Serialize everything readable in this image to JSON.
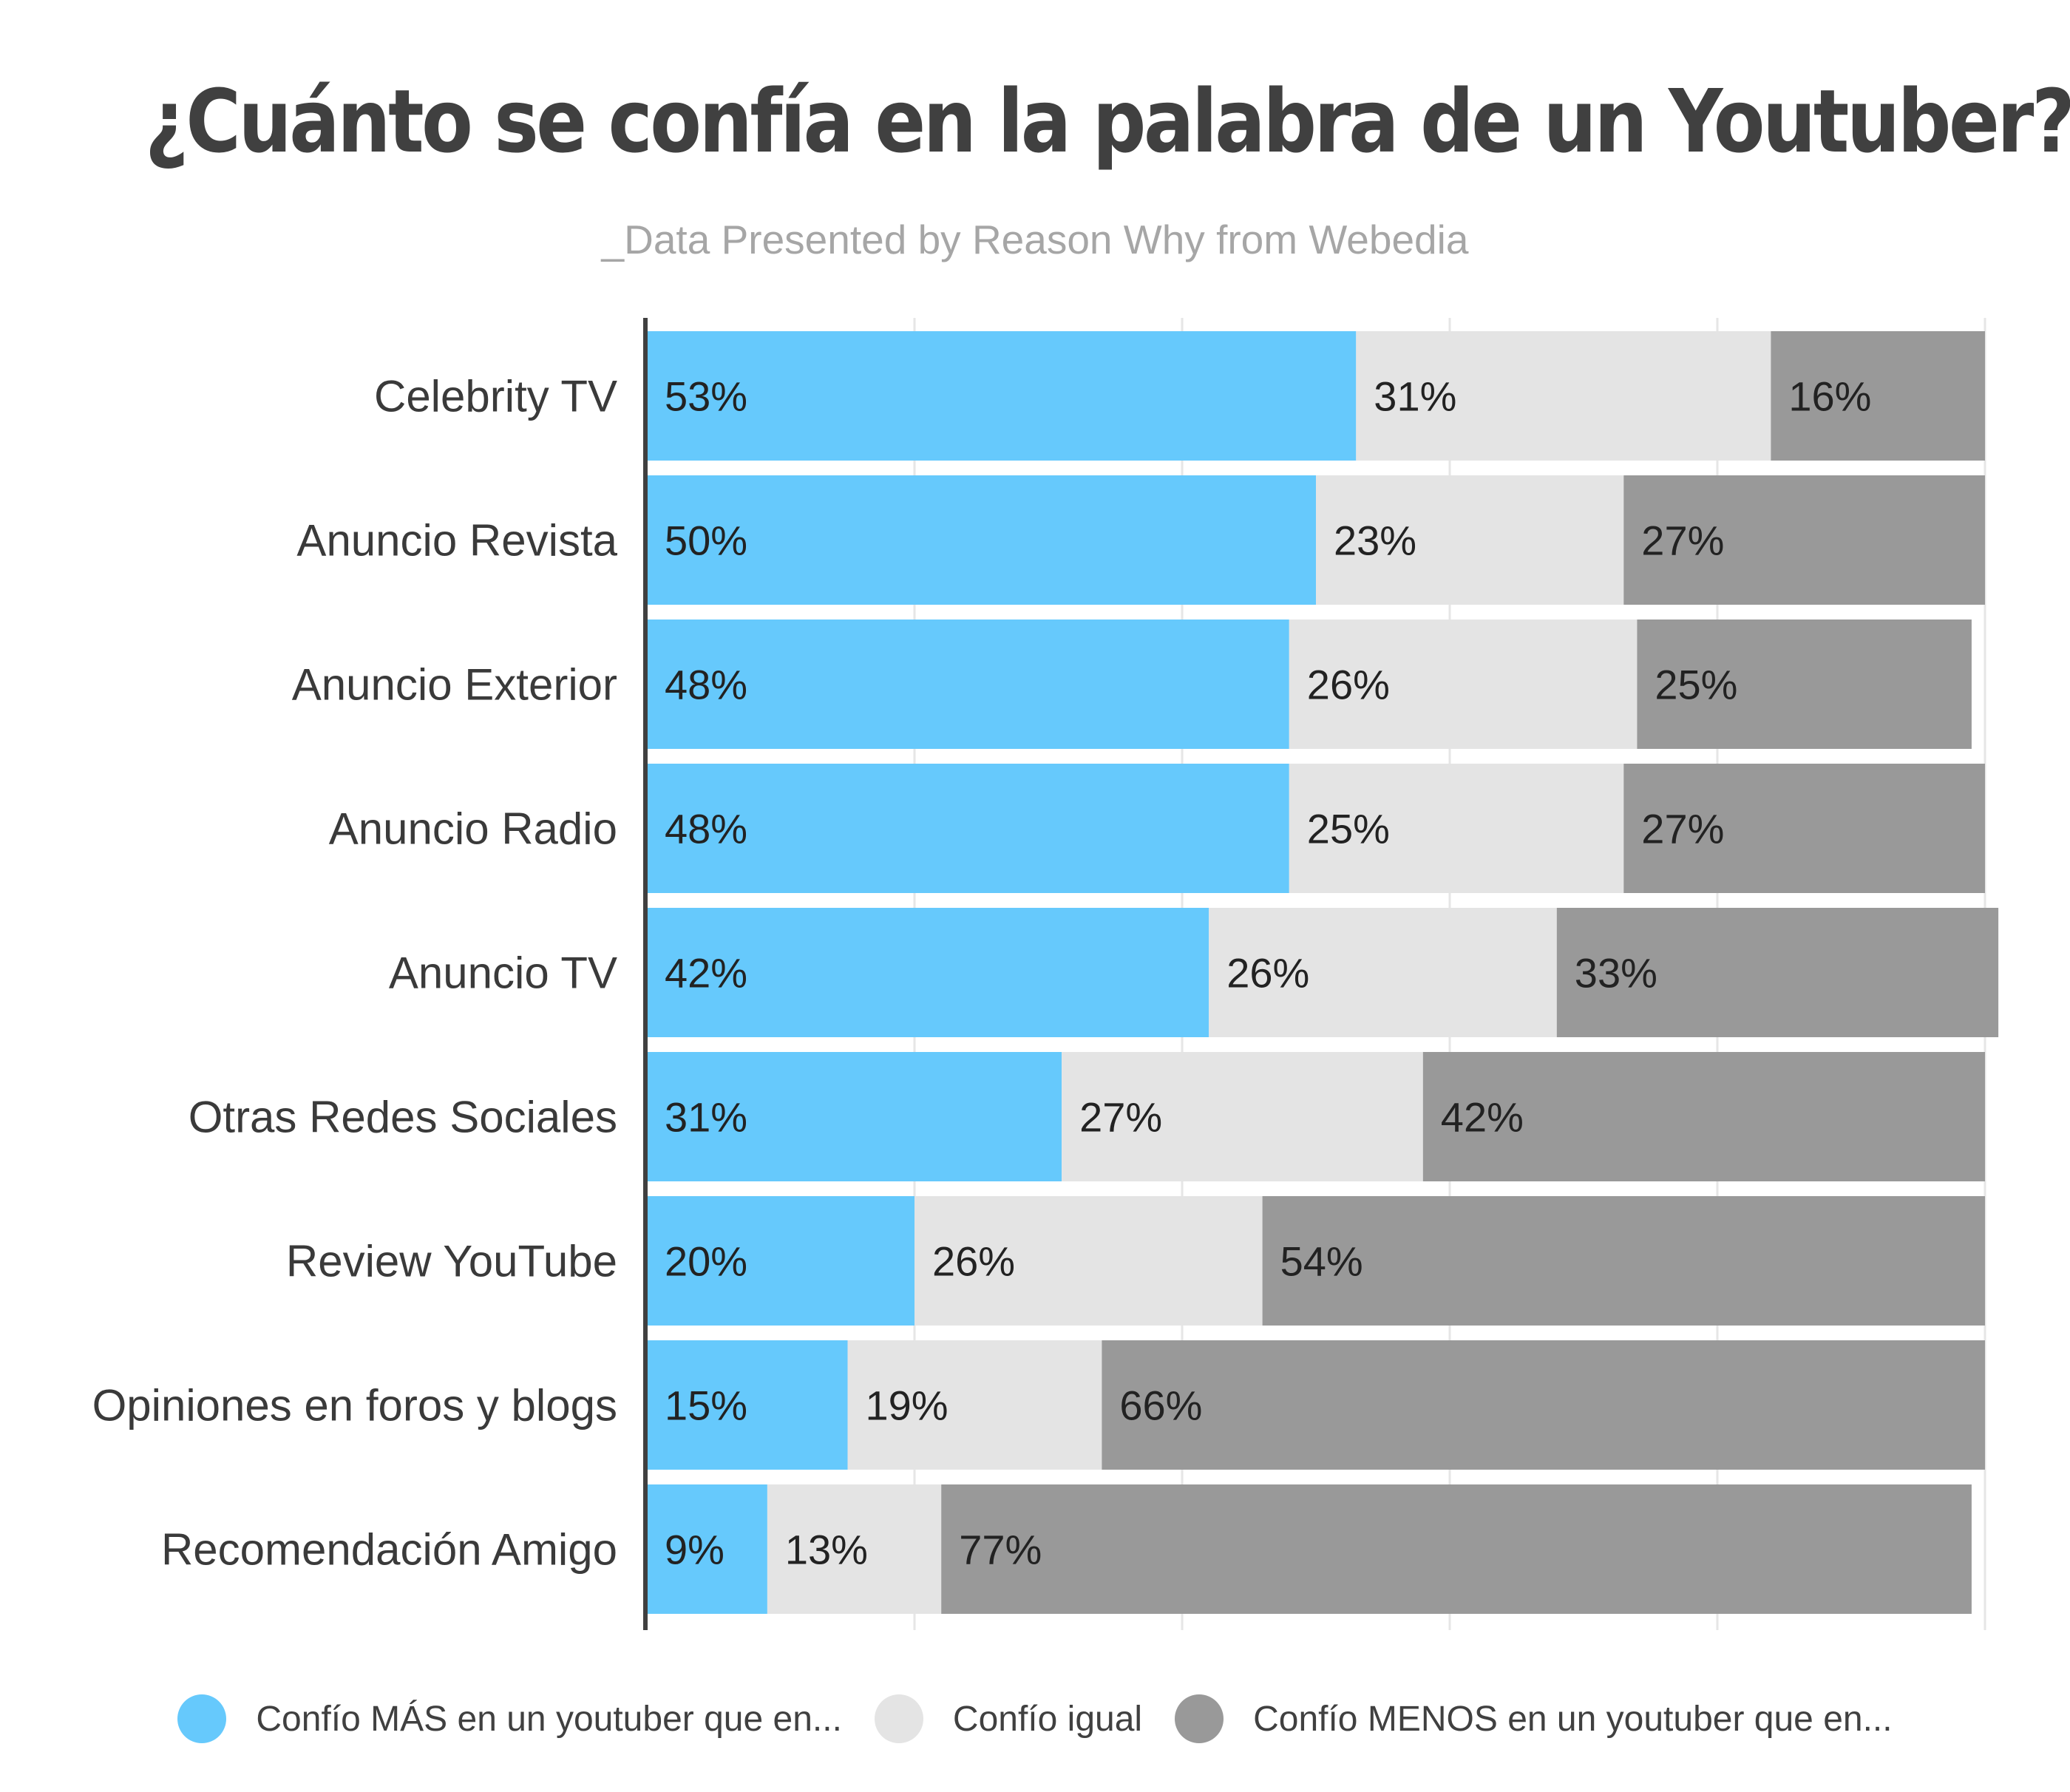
{
  "title": "¿Cuánto se confía en la palabra de un Youtuber?",
  "subtitle": "_Data Presented by Reason Why from Webedia",
  "colors": {
    "more": "#66c9fc",
    "equal": "#e4e4e4",
    "less": "#999999",
    "axis": "#404040",
    "grid": "#e6e6e6"
  },
  "chart_data": {
    "type": "bar",
    "orientation": "horizontal",
    "stacked": true,
    "xlim": [
      0,
      100
    ],
    "grid": true,
    "legend_position": "bottom",
    "categories": [
      "Celebrity TV",
      "Anuncio Revista",
      "Anuncio Exterior",
      "Anuncio Radio",
      "Anuncio TV",
      "Otras Redes Sociales",
      "Review YouTube",
      "Opiniones en foros y blogs",
      "Recomendación Amigo"
    ],
    "series": [
      {
        "name": "Confío MÁS en un youtuber que en...",
        "color": "#66c9fc",
        "values": [
          53,
          50,
          48,
          48,
          42,
          31,
          20,
          15,
          9
        ],
        "labels": [
          "53%",
          "50%",
          "48%",
          "48%",
          "42%",
          "31%",
          "20%",
          "15%",
          "9%"
        ]
      },
      {
        "name": "Confío igual",
        "color": "#e4e4e4",
        "values": [
          31,
          23,
          26,
          25,
          26,
          27,
          26,
          19,
          13
        ],
        "labels": [
          "31%",
          "23%",
          "26%",
          "25%",
          "26%",
          "27%",
          "26%",
          "19%",
          "13%"
        ]
      },
      {
        "name": "Confío MENOS en un youtuber que en...",
        "color": "#999999",
        "values": [
          16,
          27,
          25,
          27,
          33,
          42,
          54,
          66,
          77
        ],
        "labels": [
          "16%",
          "27%",
          "25%",
          "27%",
          "33%",
          "42%",
          "54%",
          "66%",
          "77%"
        ]
      }
    ]
  }
}
